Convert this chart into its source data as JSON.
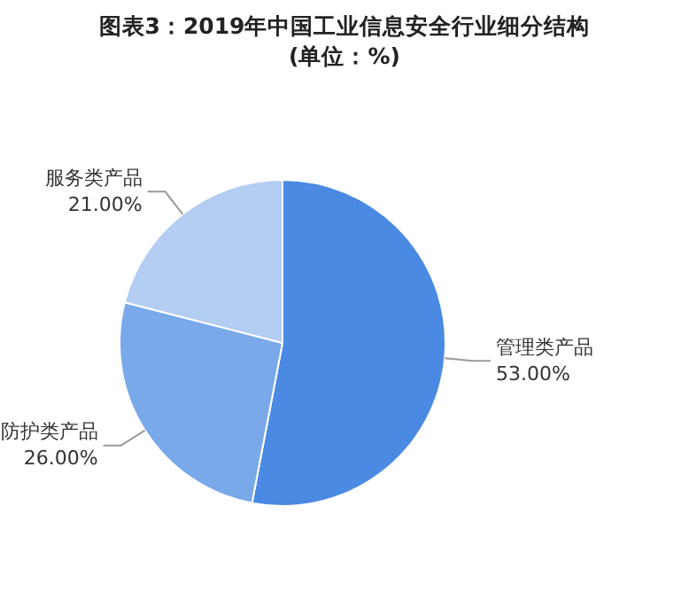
{
  "chart_data": {
    "type": "pie",
    "title": "图表3：2019年中国工业信息安全行业细分结构\n(单位：%)",
    "categories": [
      "管理类产品",
      "防护类产品",
      "服务类产品"
    ],
    "values": [
      53,
      26,
      21
    ],
    "colors": [
      "#4a8ae2",
      "#7aa9ea",
      "#b3cdf3"
    ],
    "value_labels": [
      "53.00%",
      "26.00%",
      "21.00%"
    ],
    "legend": false
  }
}
